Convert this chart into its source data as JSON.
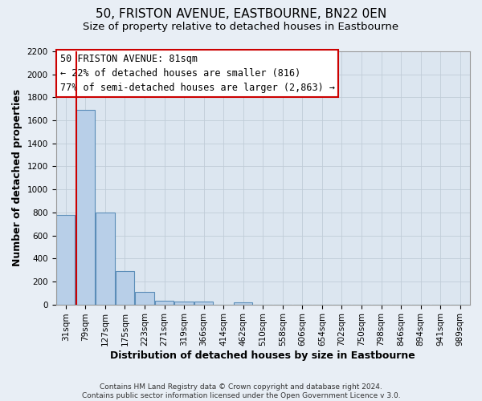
{
  "title": "50, FRISTON AVENUE, EASTBOURNE, BN22 0EN",
  "subtitle": "Size of property relative to detached houses in Eastbourne",
  "xlabel": "Distribution of detached houses by size in Eastbourne",
  "ylabel": "Number of detached properties",
  "footer_line1": "Contains HM Land Registry data © Crown copyright and database right 2024.",
  "footer_line2": "Contains public sector information licensed under the Open Government Licence v 3.0.",
  "categories": [
    "31sqm",
    "79sqm",
    "127sqm",
    "175sqm",
    "223sqm",
    "271sqm",
    "319sqm",
    "366sqm",
    "414sqm",
    "462sqm",
    "510sqm",
    "558sqm",
    "606sqm",
    "654sqm",
    "702sqm",
    "750sqm",
    "798sqm",
    "846sqm",
    "894sqm",
    "941sqm",
    "989sqm"
  ],
  "bar_heights": [
    780,
    1690,
    800,
    290,
    110,
    35,
    28,
    28,
    0,
    20,
    0,
    0,
    0,
    0,
    0,
    0,
    0,
    0,
    0,
    0,
    0
  ],
  "bar_color": "#b8cfe8",
  "bar_edge_color": "#5b8db8",
  "red_line_x": 0.55,
  "annotation_title": "50 FRISTON AVENUE: 81sqm",
  "annotation_line2": "← 22% of detached houses are smaller (816)",
  "annotation_line3": "77% of semi-detached houses are larger (2,863) →",
  "annotation_box_color": "#ffffff",
  "annotation_border_color": "#cc0000",
  "red_line_color": "#cc0000",
  "ylim": [
    0,
    2200
  ],
  "yticks": [
    0,
    200,
    400,
    600,
    800,
    1000,
    1200,
    1400,
    1600,
    1800,
    2000,
    2200
  ],
  "bg_color": "#e8eef5",
  "plot_bg_color": "#dce6f0",
  "grid_color": "#c0ccd8",
  "title_fontsize": 11,
  "subtitle_fontsize": 9.5,
  "axis_label_fontsize": 9,
  "tick_fontsize": 7.5,
  "annotation_fontsize": 8.5,
  "footer_fontsize": 6.5
}
